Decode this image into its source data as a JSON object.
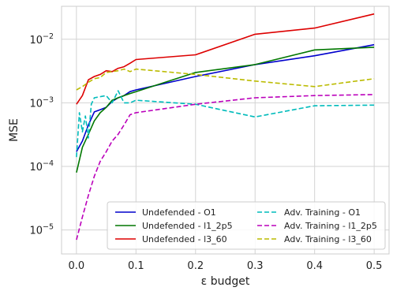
{
  "chart_data": {
    "type": "line",
    "xlabel": "ε budget",
    "ylabel": "MSE",
    "yscale": "log",
    "xlim": [
      -0.025,
      0.525
    ],
    "ylim": [
      4.2e-06,
      0.033
    ],
    "grid": true,
    "legend_position": "lower-right",
    "legend_columns": 2,
    "x_ticks": [
      0.0,
      0.1,
      0.2,
      0.3,
      0.4,
      0.5
    ],
    "x_tick_labels": [
      "0.0",
      "0.1",
      "0.2",
      "0.3",
      "0.4",
      "0.5"
    ],
    "y_ticks": [
      1e-05,
      0.0001,
      0.001,
      0.01
    ],
    "y_tick_labels": [
      {
        "base": "10",
        "exp": "−5"
      },
      {
        "base": "10",
        "exp": "−4"
      },
      {
        "base": "10",
        "exp": "−3"
      },
      {
        "base": "10",
        "exp": "−2"
      }
    ],
    "series": [
      {
        "name": "Undefended - O1",
        "color": "#0000cc",
        "dash": "solid",
        "x": [
          0.0,
          0.01,
          0.02,
          0.03,
          0.04,
          0.05,
          0.06,
          0.07,
          0.08,
          0.09,
          0.1,
          0.2,
          0.3,
          0.4,
          0.5
        ],
        "y": [
          0.00017,
          0.00025,
          0.00045,
          0.00072,
          0.00078,
          0.00085,
          0.00105,
          0.0012,
          0.0013,
          0.0015,
          0.0016,
          0.0026,
          0.004,
          0.0055,
          0.0082
        ]
      },
      {
        "name": "l1_2p5",
        "display_name": "Undefended - l1_2p5",
        "color": "#007700",
        "dash": "solid",
        "x": [
          0.0,
          0.01,
          0.02,
          0.03,
          0.04,
          0.05,
          0.06,
          0.07,
          0.08,
          0.09,
          0.1,
          0.2,
          0.3,
          0.4,
          0.5
        ],
        "y": [
          8e-05,
          0.0002,
          0.00032,
          0.00052,
          0.0007,
          0.00085,
          0.0011,
          0.0012,
          0.0013,
          0.0014,
          0.0015,
          0.003,
          0.004,
          0.0068,
          0.0075
        ]
      },
      {
        "name": "Undefended - l3_60",
        "color": "#dd0000",
        "dash": "solid",
        "x": [
          0.0,
          0.01,
          0.02,
          0.03,
          0.04,
          0.05,
          0.06,
          0.07,
          0.08,
          0.09,
          0.1,
          0.2,
          0.3,
          0.4,
          0.5
        ],
        "y": [
          0.00095,
          0.0013,
          0.0023,
          0.0026,
          0.0028,
          0.0032,
          0.0031,
          0.0035,
          0.0037,
          0.0042,
          0.0048,
          0.0057,
          0.012,
          0.015,
          0.025
        ]
      },
      {
        "name": "Adv. Training - O1",
        "color": "#00bbbb",
        "dash": "dashed",
        "x": [
          0.0,
          0.005,
          0.01,
          0.015,
          0.02,
          0.025,
          0.03,
          0.04,
          0.05,
          0.06,
          0.07,
          0.08,
          0.09,
          0.1,
          0.2,
          0.3,
          0.4,
          0.5
        ],
        "y": [
          0.00014,
          0.0007,
          0.00035,
          0.00062,
          0.00028,
          0.00095,
          0.0012,
          0.00125,
          0.0013,
          0.001,
          0.00155,
          0.001,
          0.001,
          0.0011,
          0.00095,
          0.0006,
          0.0009,
          0.00092
        ]
      },
      {
        "name": "Adv. Training - l1_2p5",
        "color": "#bb00bb",
        "dash": "dashed",
        "x": [
          0.0,
          0.01,
          0.02,
          0.03,
          0.04,
          0.05,
          0.06,
          0.07,
          0.08,
          0.09,
          0.1,
          0.2,
          0.3,
          0.4,
          0.5
        ],
        "y": [
          7e-06,
          1.6e-05,
          3.5e-05,
          7e-05,
          0.00012,
          0.00017,
          0.00025,
          0.00032,
          0.00045,
          0.00065,
          0.0007,
          0.00095,
          0.0012,
          0.0013,
          0.00135
        ]
      },
      {
        "name": "Adv. Training - l3_60",
        "color": "#bbbb00",
        "dash": "dashed",
        "x": [
          0.0,
          0.01,
          0.02,
          0.03,
          0.04,
          0.05,
          0.06,
          0.07,
          0.08,
          0.09,
          0.1,
          0.2,
          0.3,
          0.4,
          0.5
        ],
        "y": [
          0.0016,
          0.0018,
          0.0021,
          0.0024,
          0.0025,
          0.003,
          0.0031,
          0.0032,
          0.0034,
          0.0031,
          0.0034,
          0.0028,
          0.0022,
          0.0018,
          0.0024
        ]
      }
    ],
    "legend_order": [
      0,
      3,
      1,
      4,
      2,
      5
    ],
    "legend_labels": [
      "Undefended - O1",
      "Adv. Training - O1",
      "Undefended - l1_2p5",
      "Adv. Training - l1_2p5",
      "Undefended - l3_60",
      "Adv. Training - l3_60"
    ]
  }
}
